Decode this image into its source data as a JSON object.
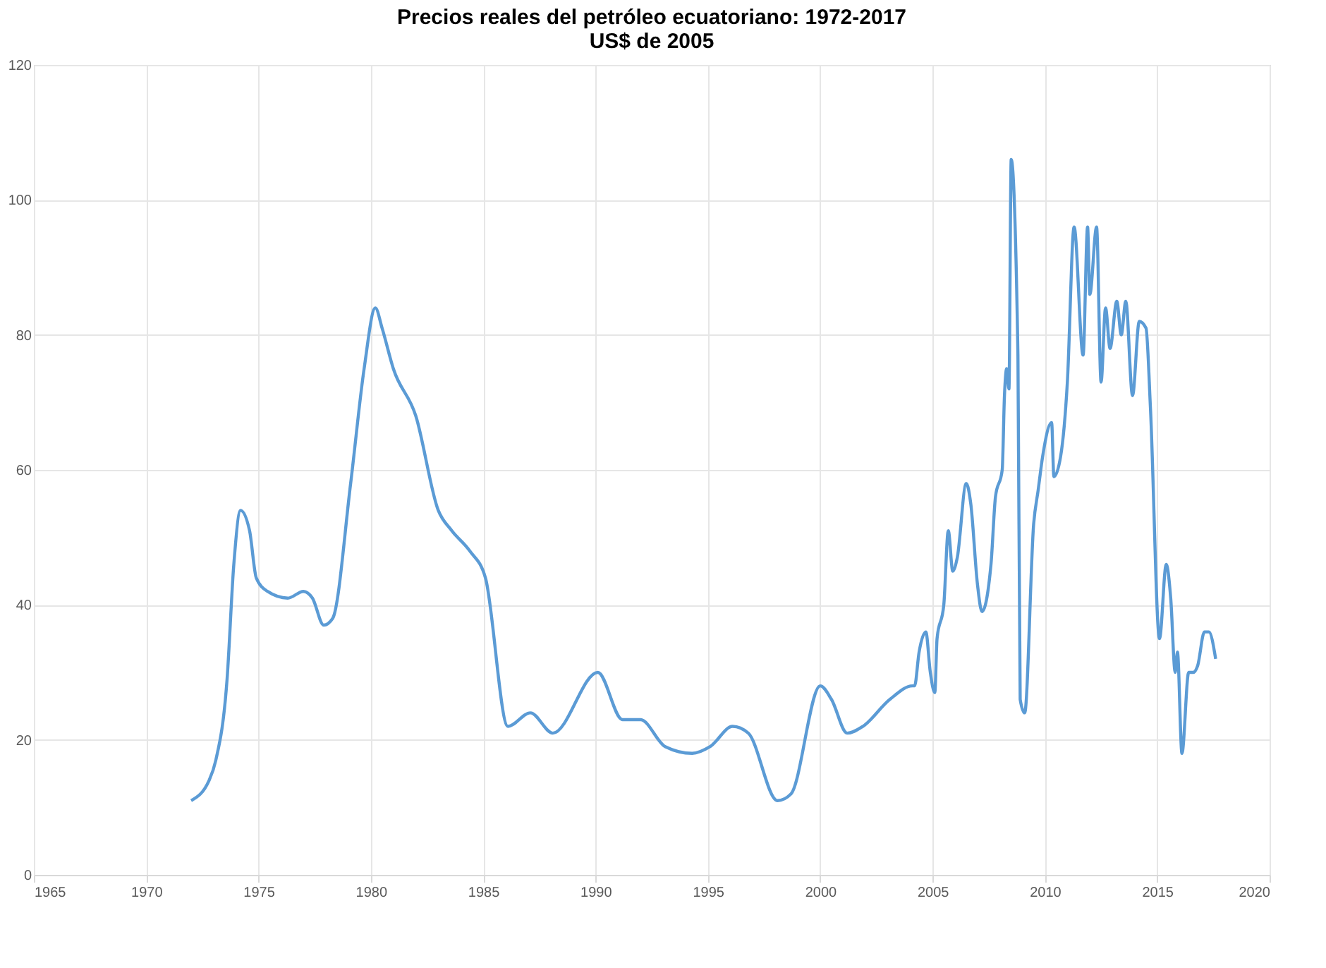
{
  "chart_data": {
    "type": "line",
    "title": [
      "Precios reales del petróleo ecuatoriano:  1972-2017",
      "US$ de 2005"
    ],
    "x": [
      1972.0,
      1972.8,
      1973.1,
      1973.6,
      1973.9,
      1974.2,
      1974.6,
      1974.9,
      1975.4,
      1976.3,
      1977.0,
      1977.4,
      1977.9,
      1978.3,
      1979.1,
      1979.7,
      1980.2,
      1980.5,
      1981.0,
      1982.0,
      1983.0,
      1983.6,
      1984.4,
      1985.1,
      1986.1,
      1987.1,
      1988.1,
      1990.1,
      1991.2,
      1992.0,
      1993.1,
      1994.3,
      1995.1,
      1996.1,
      1996.8,
      1998.1,
      1998.7,
      2000.0,
      2000.5,
      2001.2,
      2001.9,
      2003.1,
      2004.1,
      2004.2,
      2004.4,
      2004.7,
      2004.9,
      2005.1,
      2005.2,
      2005.5,
      2005.7,
      2005.9,
      2006.1,
      2006.5,
      2006.7,
      2007.0,
      2007.2,
      2007.6,
      2007.8,
      2008.1,
      2008.2,
      2008.3,
      2008.4,
      2008.5,
      2008.8,
      2008.9,
      2009.1,
      2009.5,
      2009.7,
      2009.9,
      2010.3,
      2010.4,
      2010.7,
      2011.0,
      2011.3,
      2011.7,
      2011.9,
      2012.0,
      2012.3,
      2012.5,
      2012.7,
      2012.9,
      2013.2,
      2013.4,
      2013.6,
      2013.9,
      2014.2,
      2014.5,
      2014.7,
      2015.1,
      2015.4,
      2015.6,
      2015.8,
      2015.9,
      2016.1,
      2016.4,
      2016.6,
      2016.8,
      2017.1,
      2017.3,
      2017.6
    ],
    "series": [
      {
        "color": "#5b9bd5",
        "values": [
          11,
          14,
          17,
          29,
          46,
          54,
          51,
          44,
          42,
          41,
          42,
          41,
          37,
          38,
          58,
          75,
          84,
          81,
          75,
          68,
          54,
          51,
          48,
          44,
          22,
          24,
          21,
          30,
          23,
          23,
          19,
          18,
          19,
          22,
          21,
          11,
          12,
          28,
          26,
          21,
          22,
          26,
          28,
          28,
          33,
          36,
          30,
          27,
          35,
          40,
          51,
          45,
          47,
          58,
          55,
          43,
          39,
          46,
          56,
          60,
          71,
          75,
          72,
          106,
          77,
          26,
          24,
          52,
          57,
          62,
          67,
          59,
          62,
          73,
          96,
          77,
          96,
          86,
          96,
          73,
          84,
          78,
          85,
          80,
          85,
          71,
          82,
          81,
          69,
          35,
          46,
          41,
          30,
          33,
          18,
          30,
          30,
          31,
          36,
          36,
          32
        ]
      }
    ],
    "xlim": [
      1965,
      2020
    ],
    "xticks": [
      1965,
      1970,
      1975,
      1980,
      1985,
      1990,
      1995,
      2000,
      2005,
      2010,
      2015,
      2020
    ],
    "ylim": [
      0,
      120
    ],
    "yticks": [
      0,
      20,
      40,
      60,
      80,
      100,
      120
    ],
    "grid": true,
    "legend": false,
    "marker": "none",
    "line_style": "solid"
  }
}
